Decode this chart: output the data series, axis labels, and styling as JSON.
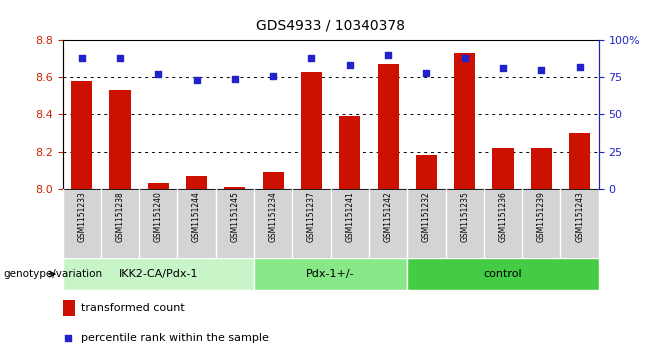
{
  "title": "GDS4933 / 10340378",
  "samples": [
    "GSM1151233",
    "GSM1151238",
    "GSM1151240",
    "GSM1151244",
    "GSM1151245",
    "GSM1151234",
    "GSM1151237",
    "GSM1151241",
    "GSM1151242",
    "GSM1151232",
    "GSM1151235",
    "GSM1151236",
    "GSM1151239",
    "GSM1151243"
  ],
  "transformed_count": [
    8.58,
    8.53,
    8.03,
    8.07,
    8.01,
    8.09,
    8.63,
    8.39,
    8.67,
    8.18,
    8.73,
    8.22,
    8.22,
    8.3
  ],
  "percentile_rank": [
    88,
    88,
    77,
    73,
    74,
    76,
    88,
    83,
    90,
    78,
    88,
    81,
    80,
    82
  ],
  "groups": [
    {
      "label": "IKK2-CA/Pdx-1",
      "start": 0,
      "end": 5,
      "color": "#c8f5c8"
    },
    {
      "label": "Pdx-1+/-",
      "start": 5,
      "end": 9,
      "color": "#88e888"
    },
    {
      "label": "control",
      "start": 9,
      "end": 14,
      "color": "#44cc44"
    }
  ],
  "ylim_left": [
    8.0,
    8.8
  ],
  "ylim_right": [
    0,
    100
  ],
  "yticks_left": [
    8.0,
    8.2,
    8.4,
    8.6,
    8.8
  ],
  "yticks_right": [
    0,
    25,
    50,
    75,
    100
  ],
  "bar_color": "#cc1100",
  "dot_color": "#2222cc",
  "bar_width": 0.55,
  "tick_area_color": "#d4d4d4",
  "left_label": "genotype/variation",
  "legend_bar": "transformed count",
  "legend_dot": "percentile rank within the sample",
  "left_axis_color": "#cc2200",
  "right_axis_color": "#2222cc"
}
